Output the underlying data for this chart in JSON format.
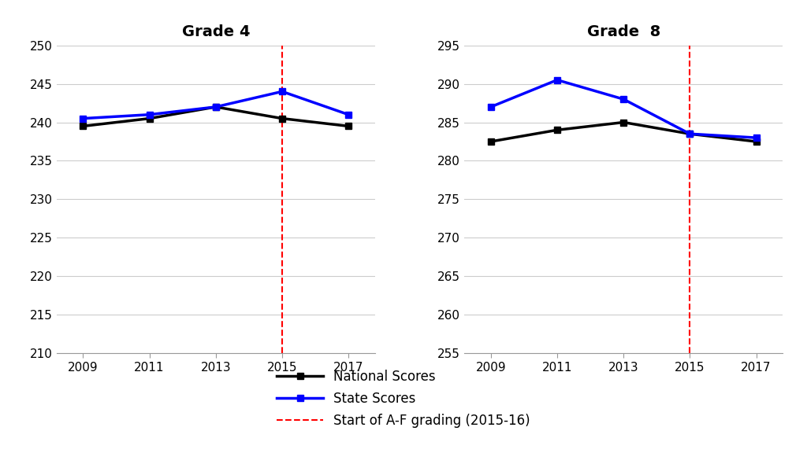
{
  "years": [
    2009,
    2011,
    2013,
    2015,
    2017
  ],
  "grade4_national": [
    239.5,
    240.5,
    242,
    240.5,
    239.5
  ],
  "grade4_state": [
    240.5,
    241,
    242,
    244,
    241
  ],
  "grade8_national": [
    282.5,
    284,
    285,
    283.5,
    282.5
  ],
  "grade8_state": [
    287,
    290.5,
    288,
    283.5,
    283
  ],
  "title4": "Grade 4",
  "title8": "Grade  8",
  "ylim4": [
    210,
    250
  ],
  "ylim8": [
    255,
    295
  ],
  "yticks4": [
    210,
    215,
    220,
    225,
    230,
    235,
    240,
    245,
    250
  ],
  "yticks8": [
    255,
    260,
    265,
    270,
    275,
    280,
    285,
    290,
    295
  ],
  "xticks": [
    2009,
    2011,
    2013,
    2015,
    2017
  ],
  "vline_x": 2015,
  "national_color": "#000000",
  "state_color": "#0000ff",
  "vline_color": "#ff0000",
  "legend_national": "National Scores",
  "legend_state": "State Scores",
  "legend_vline": "Start of A-F grading (2015-16)",
  "bg_color": "#ffffff",
  "grid_color": "#cccccc",
  "line_width": 2.5,
  "marker": "s",
  "marker_size": 6,
  "title_fontsize": 14,
  "tick_fontsize": 11,
  "legend_fontsize": 12
}
